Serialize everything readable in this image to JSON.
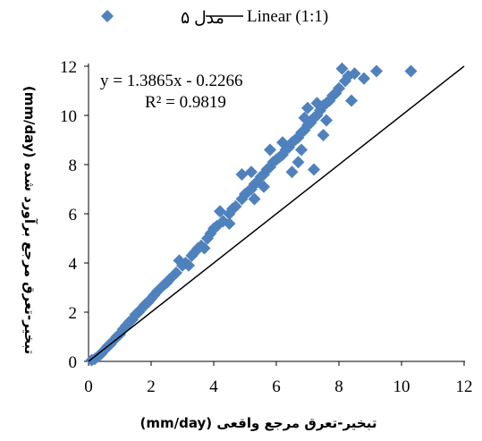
{
  "chart_data": {
    "type": "scatter",
    "xlabel": "تبخیر-تعرق مرجع واقعی (mm/day)",
    "ylabel": "تبخیر-تعرق مرجع برآورد شده (mm/day)",
    "xlim": [
      0,
      12
    ],
    "ylim": [
      0,
      12
    ],
    "x_ticks": [
      "0",
      "2",
      "4",
      "6",
      "8",
      "10",
      "12"
    ],
    "y_ticks": [
      "0",
      "2",
      "4",
      "6",
      "8",
      "10",
      "12"
    ],
    "grid": false,
    "legend_position": "top",
    "legend": [
      {
        "label": "مدل ۵",
        "marker": "diamond",
        "color": "#4F81BD"
      },
      {
        "label": "Linear (1:1)",
        "marker": "line",
        "color": "#000000"
      }
    ],
    "annotations": [
      "y = 1.3865x - 0.2266",
      "R² = 0.9819"
    ],
    "trendline": {
      "name": "Linear (1:1)",
      "x": [
        0,
        12
      ],
      "y": [
        0,
        12
      ],
      "color": "#000000"
    },
    "series": [
      {
        "name": "مدل ۵",
        "color": "#4F81BD",
        "marker": "diamond",
        "points": [
          [
            0.1,
            0.05
          ],
          [
            0.2,
            0.1
          ],
          [
            0.3,
            0.2
          ],
          [
            0.4,
            0.3
          ],
          [
            0.5,
            0.45
          ],
          [
            0.6,
            0.6
          ],
          [
            0.7,
            0.7
          ],
          [
            0.8,
            0.85
          ],
          [
            0.9,
            1.0
          ],
          [
            1.0,
            1.1
          ],
          [
            1.1,
            1.3
          ],
          [
            1.2,
            1.45
          ],
          [
            1.3,
            1.6
          ],
          [
            1.4,
            1.7
          ],
          [
            1.5,
            1.9
          ],
          [
            1.6,
            2.0
          ],
          [
            1.7,
            2.15
          ],
          [
            1.8,
            2.3
          ],
          [
            1.9,
            2.4
          ],
          [
            2.0,
            2.55
          ],
          [
            2.1,
            2.7
          ],
          [
            2.2,
            2.85
          ],
          [
            2.4,
            3.1
          ],
          [
            2.5,
            3.2
          ],
          [
            2.6,
            3.35
          ],
          [
            2.8,
            3.6
          ],
          [
            3.0,
            3.9
          ],
          [
            3.1,
            4.0
          ],
          [
            3.3,
            4.3
          ],
          [
            3.4,
            4.45
          ],
          [
            3.5,
            4.6
          ],
          [
            3.6,
            4.7
          ],
          [
            3.8,
            5.0
          ],
          [
            3.9,
            5.2
          ],
          [
            4.0,
            5.4
          ],
          [
            4.1,
            5.5
          ],
          [
            4.3,
            5.7
          ],
          [
            4.5,
            6.0
          ],
          [
            4.6,
            6.2
          ],
          [
            4.7,
            6.3
          ],
          [
            4.9,
            6.6
          ],
          [
            5.0,
            6.8
          ],
          [
            5.1,
            6.9
          ],
          [
            5.2,
            7.0
          ],
          [
            5.3,
            7.2
          ],
          [
            5.4,
            7.3
          ],
          [
            5.5,
            7.5
          ],
          [
            5.6,
            7.6
          ],
          [
            5.7,
            7.8
          ],
          [
            5.8,
            7.9
          ],
          [
            5.9,
            8.1
          ],
          [
            6.0,
            8.2
          ],
          [
            6.1,
            8.3
          ],
          [
            6.2,
            8.4
          ],
          [
            6.3,
            8.6
          ],
          [
            6.4,
            8.7
          ],
          [
            6.5,
            8.9
          ],
          [
            6.6,
            9.0
          ],
          [
            6.7,
            9.1
          ],
          [
            6.8,
            9.3
          ],
          [
            6.9,
            9.4
          ],
          [
            7.0,
            9.6
          ],
          [
            7.1,
            9.7
          ],
          [
            7.2,
            9.9
          ],
          [
            7.3,
            10.0
          ],
          [
            7.4,
            10.2
          ],
          [
            7.5,
            10.4
          ],
          [
            7.6,
            10.5
          ],
          [
            7.7,
            10.6
          ],
          [
            7.8,
            10.8
          ],
          [
            7.9,
            10.9
          ],
          [
            8.0,
            11.1
          ],
          [
            8.2,
            11.4
          ],
          [
            8.5,
            11.7
          ],
          [
            9.2,
            11.8
          ],
          [
            10.3,
            11.8
          ],
          [
            8.1,
            11.9
          ],
          [
            8.4,
            10.6
          ],
          [
            7.2,
            7.8
          ],
          [
            6.5,
            7.7
          ],
          [
            6.2,
            8.9
          ],
          [
            5.8,
            8.6
          ],
          [
            4.5,
            5.6
          ],
          [
            4.9,
            7.6
          ],
          [
            5.3,
            6.6
          ],
          [
            3.7,
            4.6
          ],
          [
            4.2,
            6.1
          ],
          [
            3.2,
            3.9
          ],
          [
            2.9,
            4.1
          ],
          [
            6.8,
            8.6
          ],
          [
            7.5,
            9.2
          ],
          [
            7.3,
            10.5
          ],
          [
            6.7,
            8.1
          ],
          [
            7.0,
            10.3
          ],
          [
            5.6,
            7.1
          ],
          [
            5.2,
            7.7
          ],
          [
            8.3,
            11.6
          ],
          [
            8.8,
            11.5
          ],
          [
            7.6,
            9.8
          ],
          [
            6.9,
            9.9
          ]
        ]
      }
    ]
  }
}
